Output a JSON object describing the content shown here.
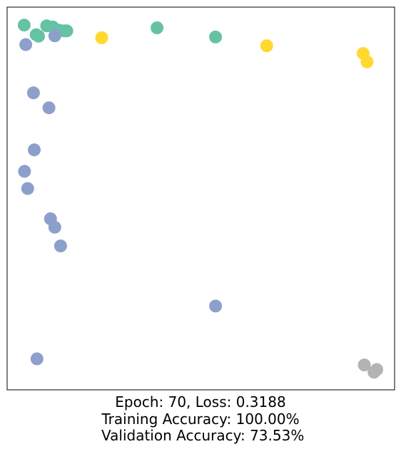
{
  "caption": {
    "line1": "Epoch: 70, Loss: 0.3188",
    "line2": "Training Accuracy: 100.00%",
    "line3": " Validation Accuracy: 73.53%"
  },
  "chart_data": {
    "type": "scatter",
    "title": "",
    "xlabel": "",
    "ylabel": "",
    "axes_visible": false,
    "grid": false,
    "legend": "none",
    "xlim": [
      0,
      1
    ],
    "ylim": [
      0,
      1
    ],
    "series": [
      {
        "color": "#66c2a5",
        "points": [
          [
            0.044,
            0.953
          ],
          [
            0.102,
            0.951
          ],
          [
            0.118,
            0.948
          ],
          [
            0.133,
            0.94
          ],
          [
            0.147,
            0.938
          ],
          [
            0.154,
            0.938
          ],
          [
            0.075,
            0.928
          ],
          [
            0.081,
            0.924
          ],
          [
            0.387,
            0.946
          ],
          [
            0.538,
            0.922
          ]
        ]
      },
      {
        "color": "#ffd92f",
        "points": [
          [
            0.244,
            0.92
          ],
          [
            0.67,
            0.899
          ],
          [
            0.919,
            0.879
          ],
          [
            0.929,
            0.857
          ]
        ]
      },
      {
        "color": "#8da0cb",
        "points": [
          [
            0.048,
            0.902
          ],
          [
            0.123,
            0.925
          ],
          [
            0.068,
            0.776
          ],
          [
            0.108,
            0.737
          ],
          [
            0.07,
            0.627
          ],
          [
            0.045,
            0.571
          ],
          [
            0.053,
            0.526
          ],
          [
            0.112,
            0.447
          ],
          [
            0.123,
            0.425
          ],
          [
            0.138,
            0.376
          ],
          [
            0.538,
            0.219
          ],
          [
            0.077,
            0.081
          ]
        ]
      },
      {
        "color": "#b3b3b3",
        "points": [
          [
            0.922,
            0.065
          ],
          [
            0.954,
            0.053
          ],
          [
            0.947,
            0.046
          ]
        ]
      }
    ]
  }
}
